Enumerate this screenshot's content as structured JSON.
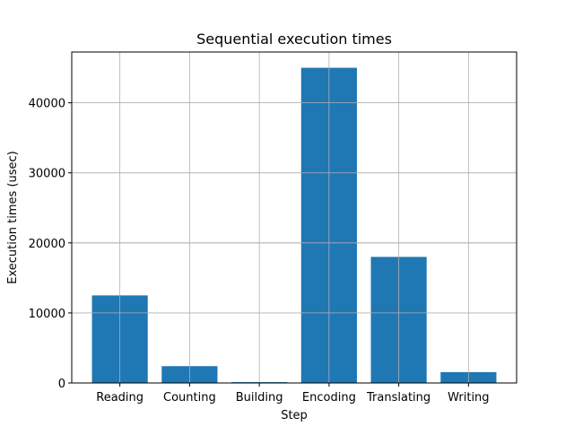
{
  "chart_data": {
    "type": "bar",
    "title": "Sequential execution times",
    "xlabel": "Step",
    "ylabel": "Execution times (usec)",
    "categories": [
      "Reading",
      "Counting",
      "Building",
      "Encoding",
      "Translating",
      "Writing"
    ],
    "values": [
      12500,
      2400,
      120,
      45000,
      18000,
      1550
    ],
    "ylim": [
      0,
      47250
    ],
    "yticks": [
      0,
      10000,
      20000,
      30000,
      40000
    ],
    "ytick_labels": [
      "0",
      "10000",
      "20000",
      "30000",
      "40000"
    ],
    "grid": true,
    "bar_color": "#1f77b4",
    "grid_color": "#b0b0b0"
  }
}
